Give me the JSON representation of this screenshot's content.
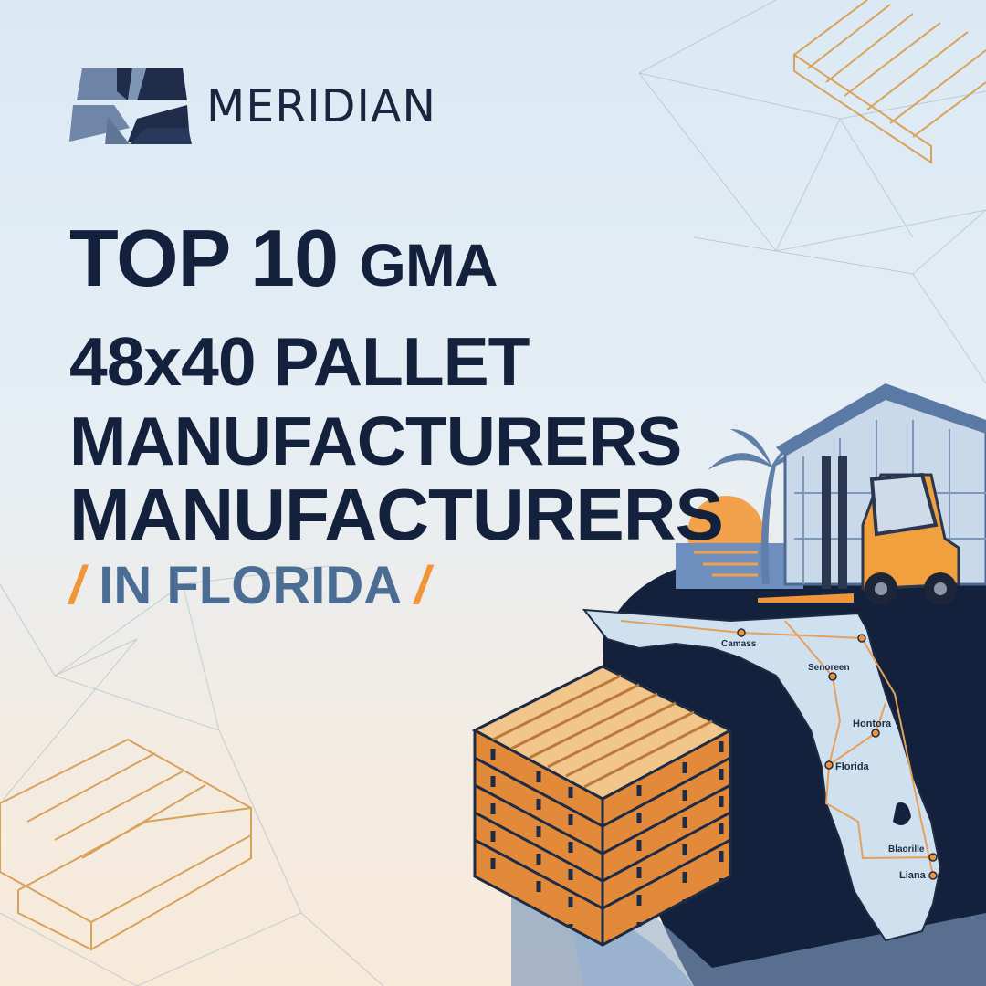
{
  "brand": {
    "name": "MERIDIAN"
  },
  "headline": {
    "line1_main": "TOP 10",
    "line1_small": "GMA",
    "line2": "48x40 PALLET",
    "line3": "MANUFACTURERS",
    "line4": "MANUFACTURERS",
    "line5": "IN FLORIDA",
    "slash": "/"
  },
  "map": {
    "labels": [
      "Camass",
      "Senoreen",
      "Hontora",
      "Florida",
      "Blaorille",
      "Liana"
    ]
  },
  "colors": {
    "navy": "#14213d",
    "accent": "#f0953a",
    "steel": "#4b6c93",
    "map_fill": "#cfe0ef"
  }
}
